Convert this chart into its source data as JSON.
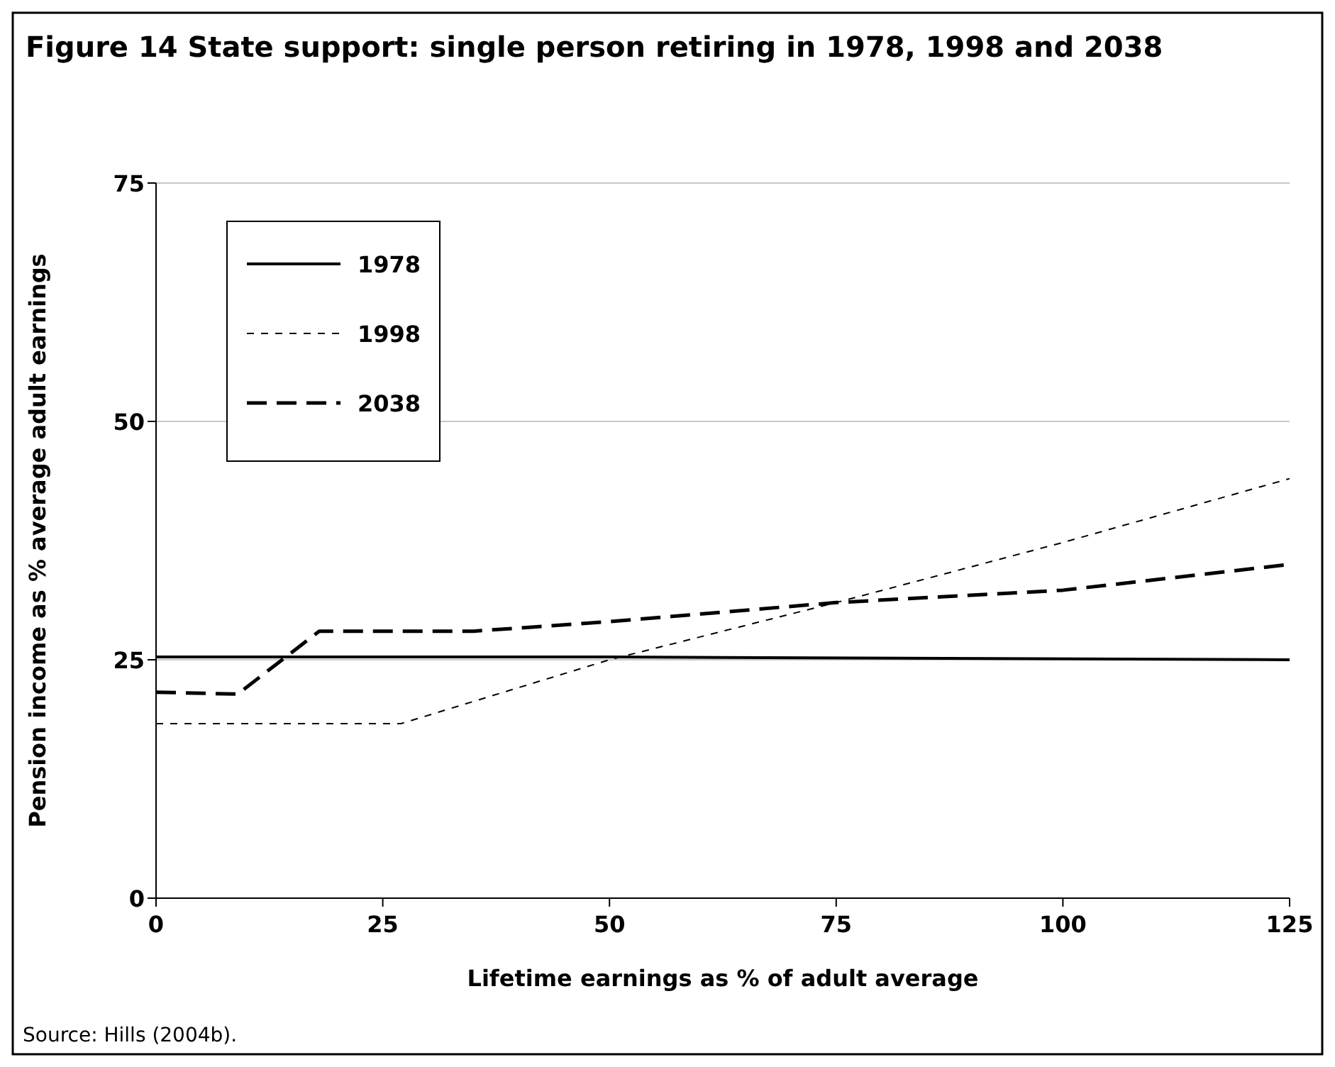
{
  "chart_data": {
    "type": "line",
    "title": "Figure 14  State support: single person retiring in 1978, 1998 and 2038",
    "xlabel": "Lifetime earnings as % of adult average",
    "ylabel": "Pension income as % average adult earnings",
    "xlim": [
      0,
      125
    ],
    "xticks": [
      0,
      25,
      50,
      75,
      100,
      125
    ],
    "ylim": [
      0,
      75
    ],
    "yticks": [
      0,
      25,
      50,
      75
    ],
    "grid": "y",
    "legend": "top left",
    "annotations": [
      "Source: Hills (2004b)."
    ],
    "series": [
      {
        "name": "1978",
        "color": "#000000",
        "line_style": "solid",
        "x": [
          0,
          50,
          125
        ],
        "values": [
          25.3,
          25.3,
          25
        ]
      },
      {
        "name": "1998",
        "color": "#000000",
        "line_style": "dotted",
        "x": [
          0,
          27,
          50,
          75,
          100,
          125
        ],
        "values": [
          18.3,
          18.3,
          25,
          31,
          37.3,
          44
        ]
      },
      {
        "name": "2038",
        "color": "#000000",
        "line_style": "dashed",
        "x": [
          0,
          9,
          18,
          35,
          50,
          75,
          100,
          125
        ],
        "values": [
          21.6,
          21.4,
          28,
          28,
          29,
          31,
          32.3,
          35
        ]
      }
    ]
  }
}
